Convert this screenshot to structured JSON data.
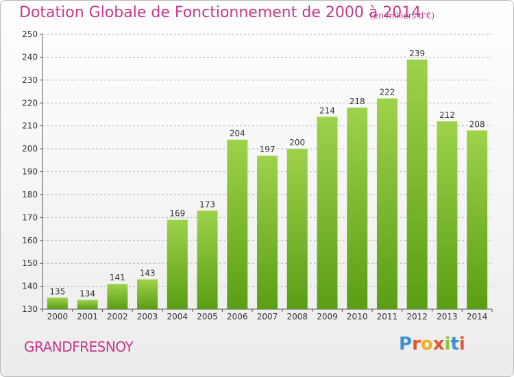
{
  "title": "Dotation Globale de Fonctionnement de 2000 à 2014",
  "unit_note": "(en milliers d'€)",
  "commune": "GRANDFRESNOY",
  "logo": {
    "text": "Proxiti",
    "letter_colors": [
      "#3a8fd6",
      "#e0582a",
      "#f0b020",
      "#e0582a",
      "#8cc63f",
      "#3a8fd6",
      "#e0582a"
    ]
  },
  "colors": {
    "title": "#c8388a",
    "bar_top": "#9ed24a",
    "bar_bottom": "#5a9e14",
    "grid": "#b0b0b0"
  },
  "chart_data": {
    "type": "bar",
    "categories": [
      "2000",
      "2001",
      "2002",
      "2003",
      "2004",
      "2005",
      "2006",
      "2007",
      "2008",
      "2009",
      "2010",
      "2011",
      "2012",
      "2013",
      "2014"
    ],
    "values": [
      135,
      134,
      141,
      143,
      169,
      173,
      204,
      197,
      200,
      214,
      218,
      222,
      239,
      212,
      208
    ],
    "ylim": [
      130,
      250
    ],
    "yticks": [
      130,
      140,
      150,
      160,
      170,
      180,
      190,
      200,
      210,
      220,
      230,
      240,
      250
    ],
    "grid": true,
    "xlabel": "",
    "ylabel": ""
  }
}
